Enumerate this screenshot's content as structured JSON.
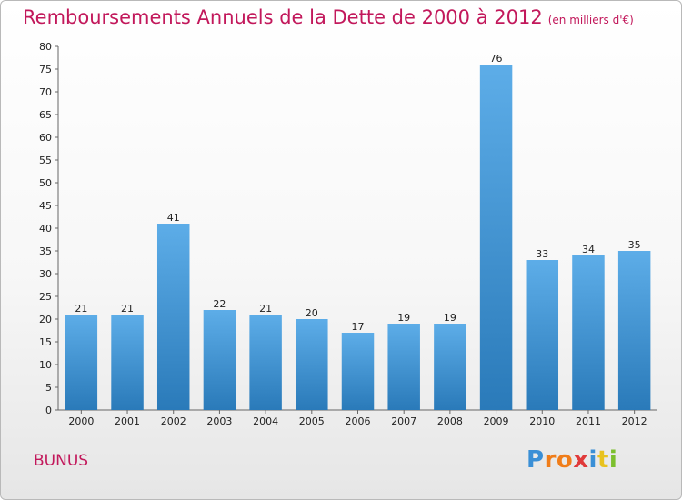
{
  "chart_data": {
    "type": "bar",
    "title": "Remboursements Annuels de la Dette de 2000 à 2012",
    "subtitle": "(en milliers d'€)",
    "categories": [
      "2000",
      "2001",
      "2002",
      "2003",
      "2004",
      "2005",
      "2006",
      "2007",
      "2008",
      "2009",
      "2010",
      "2011",
      "2012"
    ],
    "values": [
      21,
      21,
      41,
      22,
      21,
      20,
      17,
      19,
      19,
      76,
      33,
      34,
      35
    ],
    "ylim": [
      0,
      80
    ],
    "ytick_step": 5,
    "grid": false,
    "bar_color_top": "#5dade8",
    "bar_color_bottom": "#2a7ab9"
  },
  "footer": {
    "commune": "BUNUS",
    "logo": {
      "text": "Proxiti",
      "letters": [
        "P",
        "r",
        "o",
        "x",
        "i",
        "t",
        "i"
      ],
      "colors": [
        "#3a8fd6",
        "#f07d1a",
        "#f07d1a",
        "#e03a3a",
        "#3a8fd6",
        "#e8c21e",
        "#7cbf2e"
      ]
    }
  },
  "colors": {
    "title": "#c2185b",
    "commune": "#c2185b"
  }
}
